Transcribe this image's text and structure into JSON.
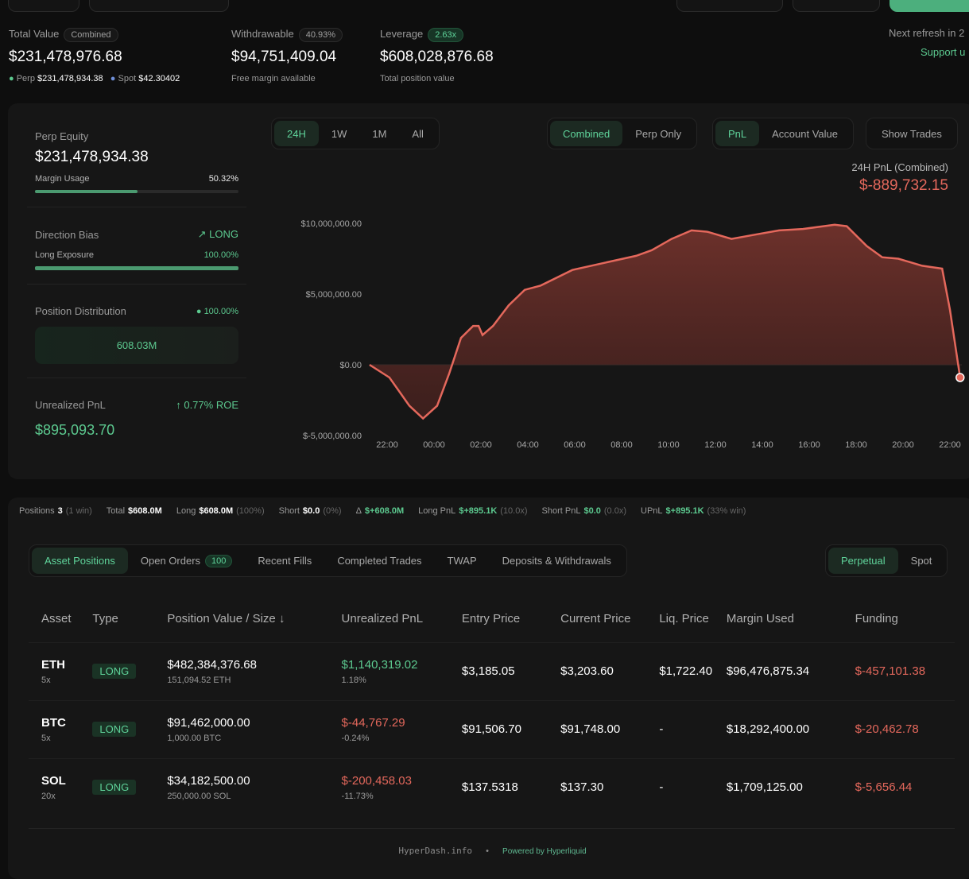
{
  "header": {
    "refresh": "Next refresh in 2",
    "support": "Support u"
  },
  "summary": {
    "total_value": {
      "label": "Total Value",
      "badge": "Combined",
      "value": "$231,478,976.68",
      "perp_label": "Perp",
      "perp_value": "$231,478,934.38",
      "spot_label": "Spot",
      "spot_value": "$42.30402"
    },
    "withdrawable": {
      "label": "Withdrawable",
      "badge": "40.93%",
      "value": "$94,751,409.04",
      "sub": "Free margin available"
    },
    "leverage": {
      "label": "Leverage",
      "badge": "2.63x",
      "value": "$608,028,876.68",
      "sub": "Total position value"
    }
  },
  "side": {
    "perp_equity_label": "Perp Equity",
    "perp_equity": "$231,478,934.38",
    "margin_usage_label": "Margin Usage",
    "margin_usage": "50.32%",
    "margin_usage_fraction": 0.5032,
    "direction_label": "Direction Bias",
    "direction": "LONG",
    "long_exposure_label": "Long Exposure",
    "long_exposure": "100.00%",
    "long_exposure_fraction": 1.0,
    "distribution_label": "Position Distribution",
    "distribution_pct": "100.00%",
    "distribution_value": "608.03M",
    "upnl_label": "Unrealized PnL",
    "roe": "0.77% ROE",
    "upnl": "$895,093.70"
  },
  "chart_controls": {
    "ranges": [
      "24H",
      "1W",
      "1M",
      "All"
    ],
    "active_range": "24H",
    "modes": [
      "Combined",
      "Perp Only"
    ],
    "active_mode": "Combined",
    "metrics": [
      "PnL",
      "Account Value"
    ],
    "active_metric": "PnL",
    "show_trades": "Show Trades",
    "pnl_title": "24H PnL (Combined)",
    "pnl_value": "$-889,732.15",
    "watermark": "hyperdash.info"
  },
  "chart_data": {
    "type": "area",
    "x_ticks": [
      "22:00",
      "00:00",
      "02:00",
      "04:00",
      "06:00",
      "08:00",
      "10:00",
      "12:00",
      "14:00",
      "16:00",
      "18:00",
      "20:00",
      "22:00"
    ],
    "y_ticks": [
      "$10,000,000.00",
      "$5,000,000.00",
      "$0.00",
      "$-5,000,000.00"
    ],
    "ylim": [
      -5000000,
      10000000
    ],
    "line_color": "#e4685c",
    "grid": false,
    "x": [
      "21:15",
      "22:06",
      "22:57",
      "23:32",
      "00:08",
      "00:39",
      "01:09",
      "01:40",
      "01:54",
      "02:04",
      "02:31",
      "03:11",
      "03:52",
      "04:33",
      "05:54",
      "07:15",
      "08:37",
      "09:17",
      "10:08",
      "10:59",
      "11:40",
      "12:41",
      "13:42",
      "14:43",
      "15:44",
      "17:05",
      "17:36",
      "18:27",
      "19:07",
      "19:48",
      "20:49",
      "21:40",
      "22:00",
      "22:26"
    ],
    "y": [
      0,
      -900000,
      -2900000,
      -3800000,
      -2900000,
      -600000,
      1900000,
      2750000,
      2750000,
      2100000,
      2750000,
      4200000,
      5300000,
      5600000,
      6700000,
      7200000,
      7700000,
      8100000,
      8900000,
      9500000,
      9400000,
      8900000,
      9200000,
      9500000,
      9600000,
      9900000,
      9800000,
      8400000,
      7600000,
      7500000,
      7000000,
      6800000,
      3900000,
      -900000
    ]
  },
  "stats": [
    {
      "label": "Positions",
      "value": "3",
      "extra": "(1 win)",
      "color": "white"
    },
    {
      "label": "Total",
      "value": "$608.0M",
      "extra": "",
      "color": "white"
    },
    {
      "label": "Long",
      "value": "$608.0M",
      "extra": "(100%)",
      "color": "white"
    },
    {
      "label": "Short",
      "value": "$0.0",
      "extra": "(0%)",
      "color": "white"
    },
    {
      "label": "Δ",
      "value": "$+608.0M",
      "extra": "",
      "color": "green"
    },
    {
      "label": "Long PnL",
      "value": "$+895.1K",
      "extra": "(10.0x)",
      "color": "green"
    },
    {
      "label": "Short PnL",
      "value": "$0.0",
      "extra": "(0.0x)",
      "color": "green"
    },
    {
      "label": "UPnL",
      "value": "$+895.1K",
      "extra": "(33% win)",
      "color": "green"
    }
  ],
  "tabs": [
    {
      "label": "Asset Positions",
      "active": true
    },
    {
      "label": "Open Orders",
      "count": "100"
    },
    {
      "label": "Recent Fills"
    },
    {
      "label": "Completed Trades"
    },
    {
      "label": "TWAP"
    },
    {
      "label": "Deposits & Withdrawals"
    }
  ],
  "market_tabs": [
    "Perpetual",
    "Spot"
  ],
  "table": {
    "headers": [
      "Asset",
      "Type",
      "Position Value / Size ↓",
      "Unrealized PnL",
      "Entry Price",
      "Current Price",
      "Liq. Price",
      "Margin Used",
      "Funding"
    ],
    "rows": [
      {
        "asset": "ETH",
        "lev": "5x",
        "type": "LONG",
        "value": "$482,384,376.68",
        "size": "151,094.52 ETH",
        "pnl": "$1,140,319.02",
        "pnl_pct": "1.18%",
        "pnl_color": "green",
        "entry": "$3,185.05",
        "current": "$3,203.60",
        "liq": "$1,722.40",
        "margin": "$96,476,875.34",
        "funding": "$-457,101.38"
      },
      {
        "asset": "BTC",
        "lev": "5x",
        "type": "LONG",
        "value": "$91,462,000.00",
        "size": "1,000.00 BTC",
        "pnl": "$-44,767.29",
        "pnl_pct": "-0.24%",
        "pnl_color": "red",
        "entry": "$91,506.70",
        "current": "$91,748.00",
        "liq": "-",
        "margin": "$18,292,400.00",
        "funding": "$-20,462.78"
      },
      {
        "asset": "SOL",
        "lev": "20x",
        "type": "LONG",
        "value": "$34,182,500.00",
        "size": "250,000.00 SOL",
        "pnl": "$-200,458.03",
        "pnl_pct": "-11.73%",
        "pnl_color": "red",
        "entry": "$137.5318",
        "current": "$137.30",
        "liq": "-",
        "margin": "$1,709,125.00",
        "funding": "$-5,656.44"
      }
    ],
    "watermark": "Hyperdash"
  },
  "footer": {
    "site": "HyperDash.info",
    "powered": "Powered by Hyperliquid"
  }
}
